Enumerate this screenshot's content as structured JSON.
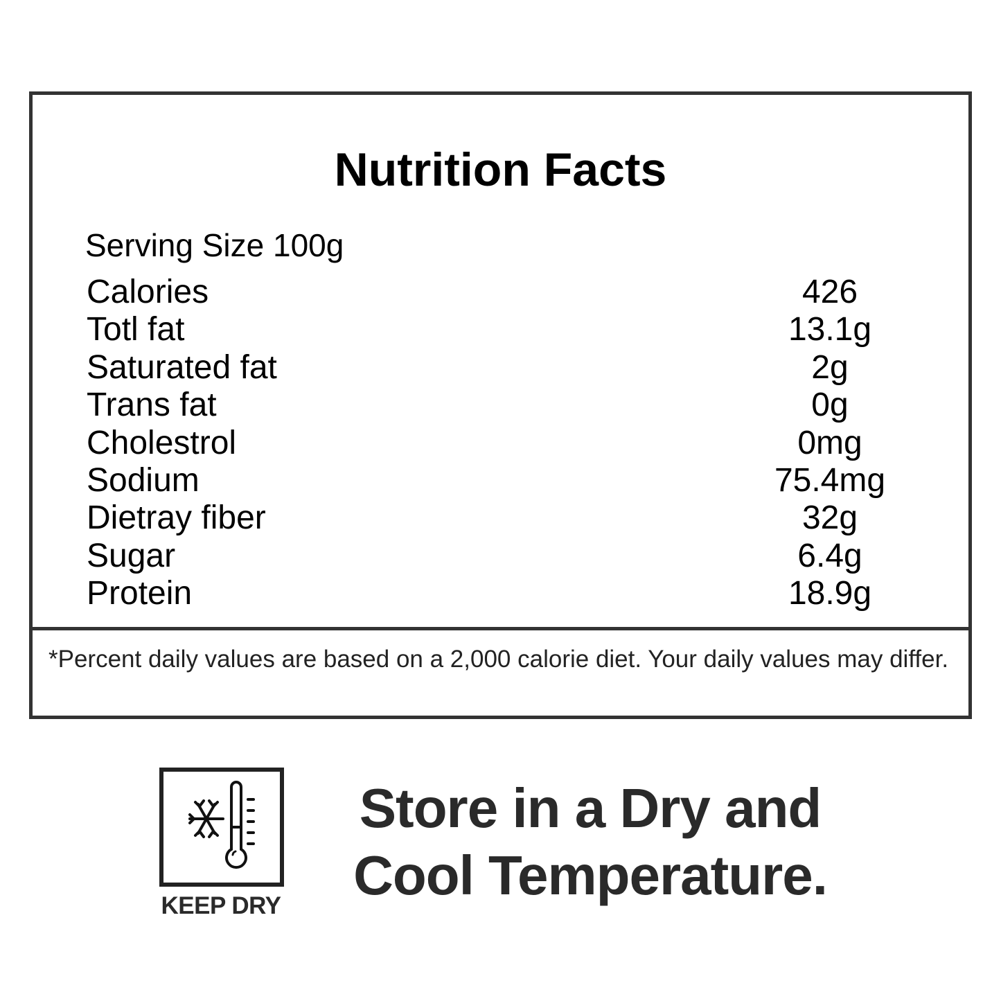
{
  "title": "Nutrition Facts",
  "serving_size": "Serving Size 100g",
  "nutrients": [
    {
      "label": "Calories",
      "value": "426"
    },
    {
      "label": "Totl fat",
      "value": "13.1g"
    },
    {
      "label": "Saturated fat",
      "value": "2g"
    },
    {
      "label": "Trans fat",
      "value": "0g"
    },
    {
      "label": "Cholestrol",
      "value": "0mg"
    },
    {
      "label": "Sodium",
      "value": "75.4mg"
    },
    {
      "label": "Dietray fiber",
      "value": "32g"
    },
    {
      "label": "Sugar",
      "value": "6.4g"
    },
    {
      "label": "Protein",
      "value": "18.9g"
    }
  ],
  "footnote": "*Percent daily values are based on a 2,000 calorie diet. Your daily values may differ.",
  "storage": {
    "icon": "snowflake-thermometer-icon",
    "icon_label": "KEEP DRY",
    "line1": "Store in a Dry and",
    "line2": "Cool Temperature."
  }
}
